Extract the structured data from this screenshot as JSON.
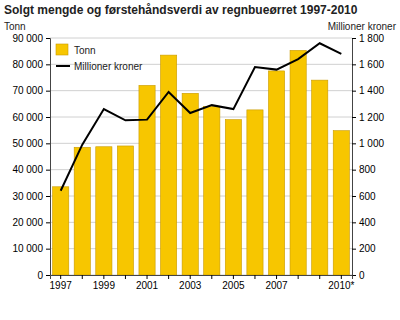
{
  "chart_data": {
    "type": "bar",
    "title": "Solgt mengde og førstehåndsverdi av regnbueørret 1997-2010",
    "y_label": "Tonn",
    "y2_label": "Millioner kroner",
    "categories": [
      "1997",
      null,
      "1999",
      null,
      "2001",
      null,
      "2003",
      null,
      "2005",
      null,
      "2007",
      null,
      null,
      "2010*"
    ],
    "series": [
      {
        "name": "Tonn",
        "type": "bar",
        "color": "#f7c600",
        "values": [
          33500,
          48500,
          48700,
          49000,
          72000,
          83500,
          69000,
          64000,
          59000,
          62700,
          77500,
          85300,
          74000,
          54800
        ]
      },
      {
        "name": "Millioner kroner",
        "type": "line",
        "axis": "y2",
        "color": "#000000",
        "values": [
          640,
          990,
          1260,
          1175,
          1180,
          1390,
          1230,
          1290,
          1260,
          1580,
          1560,
          1640,
          1760,
          1680
        ]
      }
    ],
    "ylim": [
      0,
      90000
    ],
    "yticks": [
      0,
      {
        "value": 10000,
        "label": "10 000"
      },
      {
        "value": 20000,
        "label": "20 000"
      },
      {
        "value": 30000,
        "label": "30 000"
      },
      {
        "value": 40000,
        "label": "40 000"
      },
      {
        "value": 50000,
        "label": "50 000"
      },
      {
        "value": 60000,
        "label": "60 000"
      },
      {
        "value": 70000,
        "label": "70 000"
      },
      {
        "value": 80000,
        "label": "80 000"
      },
      {
        "value": 90000,
        "label": "90 000"
      }
    ],
    "y2lim": [
      0,
      1800
    ],
    "y2ticks": [
      0,
      200,
      400,
      600,
      800,
      {
        "value": 1000,
        "label": "1 000"
      },
      {
        "value": 1200,
        "label": "1 200"
      },
      {
        "value": 1400,
        "label": "1 400"
      },
      {
        "value": 1600,
        "label": "1 600"
      },
      {
        "value": 1800,
        "label": "1 800"
      }
    ],
    "grid": true,
    "legend": "top-left"
  }
}
